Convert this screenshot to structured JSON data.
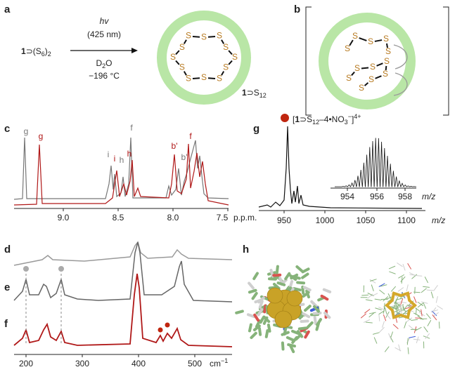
{
  "panels": {
    "a": {
      "label": "a",
      "reactant": [
        "1",
        "⊃(S",
        "6",
        ")",
        "2"
      ],
      "light": "hv",
      "wavelength": "(425 nm)",
      "solvent": [
        "D",
        "2",
        "O"
      ],
      "temperature": "−196 °C",
      "product": [
        "1",
        "⊃S",
        "12"
      ],
      "atom": "S"
    },
    "b": {
      "label": "b",
      "atom": "S"
    },
    "c": {
      "label": "c",
      "peak_labels": [
        "g",
        "g",
        "i",
        "i",
        "h",
        "h",
        "f",
        "b'",
        "b'",
        "f"
      ],
      "xticks": [
        "9.0",
        "8.5",
        "8.0",
        "7.5"
      ],
      "x_unit": "p.p.m."
    },
    "g": {
      "label": "g",
      "ion": [
        "[",
        "1",
        "⊃S",
        "12",
        "–4•NO",
        "3",
        "−",
        "]",
        "4+"
      ],
      "xticks": [
        "950",
        "1000",
        "1050",
        "1100"
      ],
      "x_unit": "m/z",
      "inset_xticks": [
        "954",
        "956",
        "958"
      ],
      "inset_x_unit": "m/z"
    },
    "def": {
      "labels": [
        "d",
        "e",
        "f"
      ],
      "xticks": [
        "200",
        "300",
        "400",
        "500"
      ],
      "x_unit": [
        "cm",
        "−1"
      ]
    },
    "h": {
      "label": "h"
    }
  }
}
